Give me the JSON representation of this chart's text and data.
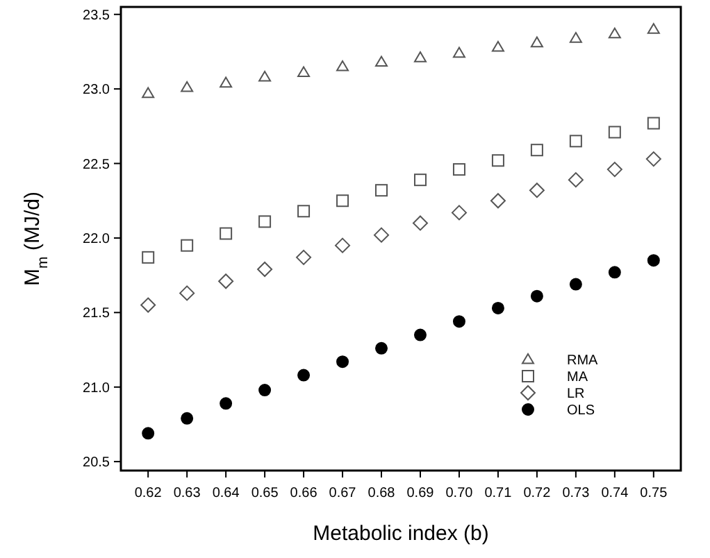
{
  "chart_data": {
    "type": "scatter",
    "xlabel": "Metabolic index (b)",
    "ylabel": "M$_{m}$ (MJ/d)",
    "x": [
      0.62,
      0.63,
      0.64,
      0.65,
      0.66,
      0.67,
      0.68,
      0.69,
      0.7,
      0.71,
      0.72,
      0.73,
      0.74,
      0.75
    ],
    "series": [
      {
        "name": "RMA",
        "color": "#555555",
        "marker": "triangle",
        "values": [
          22.97,
          23.01,
          23.04,
          23.08,
          23.11,
          23.15,
          23.18,
          23.21,
          23.24,
          23.28,
          23.31,
          23.34,
          23.37,
          23.4
        ]
      },
      {
        "name": "MA",
        "color": "#555555",
        "marker": "square",
        "values": [
          21.87,
          21.95,
          22.03,
          22.11,
          22.18,
          22.25,
          22.32,
          22.39,
          22.46,
          22.52,
          22.59,
          22.65,
          22.71,
          22.77
        ]
      },
      {
        "name": "LR",
        "color": "#555555",
        "marker": "diamond",
        "values": [
          21.55,
          21.63,
          21.71,
          21.79,
          21.87,
          21.95,
          22.02,
          22.1,
          22.17,
          22.25,
          22.32,
          22.39,
          22.46,
          22.53
        ]
      },
      {
        "name": "OLS",
        "color": "#000000",
        "marker": "circle",
        "values": [
          20.69,
          20.79,
          20.89,
          20.98,
          21.08,
          21.17,
          21.26,
          21.35,
          21.44,
          21.53,
          21.61,
          21.69,
          21.77,
          21.85
        ]
      }
    ],
    "xlim": [
      0.613,
      0.757
    ],
    "ylim": [
      20.44,
      23.55
    ],
    "xticks": [
      {
        "value": 0.62,
        "label": "0.62"
      },
      {
        "value": 0.63,
        "label": "0.63"
      },
      {
        "value": 0.64,
        "label": "0.64"
      },
      {
        "value": 0.65,
        "label": "0.65"
      },
      {
        "value": 0.66,
        "label": "0.66"
      },
      {
        "value": 0.67,
        "label": "0.67"
      },
      {
        "value": 0.68,
        "label": "0.68"
      },
      {
        "value": 0.69,
        "label": "0.69"
      },
      {
        "value": 0.7,
        "label": "0.70"
      },
      {
        "value": 0.71,
        "label": "0.71"
      },
      {
        "value": 0.72,
        "label": "0.72"
      },
      {
        "value": 0.73,
        "label": "0.73"
      },
      {
        "value": 0.74,
        "label": "0.74"
      },
      {
        "value": 0.75,
        "label": "0.75"
      }
    ],
    "yticks": [
      {
        "value": 20.5,
        "label": "20.5"
      },
      {
        "value": 21,
        "label": "21.0"
      },
      {
        "value": 21.5,
        "label": "21.5"
      },
      {
        "value": 22,
        "label": "22.0"
      },
      {
        "value": 22.5,
        "label": "22.5"
      },
      {
        "value": 23,
        "label": "23.0"
      },
      {
        "value": 23.5,
        "label": "23.5"
      }
    ],
    "grid": false,
    "legend": "bottom right"
  }
}
